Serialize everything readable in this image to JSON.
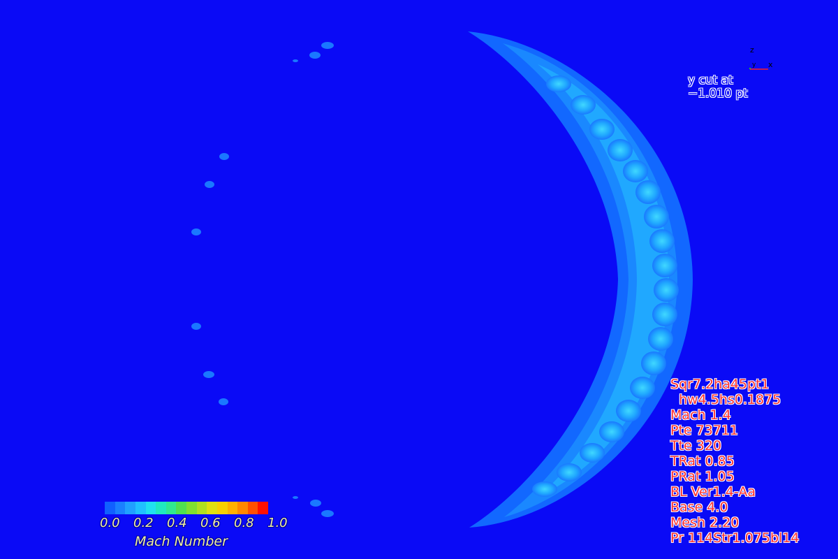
{
  "cut_label": {
    "line1": "y cut at",
    "line2": "−1.010 pt"
  },
  "parameters": [
    "Sqr7.2ha45pt1",
    "  hw4.5hs0.1875",
    "Mach 1.4",
    "Pte 73711",
    "Tte 320",
    "TRat 0.85",
    "PRat 1.05",
    "BL Ver1.4-Aa",
    "Base 4.0",
    "Mesh 2.20",
    "Pr 114Str1.075bl14"
  ],
  "colorbar": {
    "title": "Mach Number",
    "ticks": [
      "0.0",
      "0.2",
      "0.4",
      "0.6",
      "0.8",
      "1.0"
    ],
    "colors": [
      "#1060ff",
      "#1a80ff",
      "#20a0ff",
      "#20c0ff",
      "#20e0f0",
      "#20e8c0",
      "#30e890",
      "#50e050",
      "#80e030",
      "#b0e020",
      "#e0e010",
      "#f8d000",
      "#ffb000",
      "#ff8800",
      "#ff5000",
      "#ff1000"
    ]
  },
  "axes": {
    "z": "z",
    "y": "y",
    "x": "x"
  },
  "colors": {
    "background": "#0a0af6",
    "param_text": "#ff3030",
    "colorbar_text": "#f0f0a0",
    "label_text": "#0a0af6"
  }
}
